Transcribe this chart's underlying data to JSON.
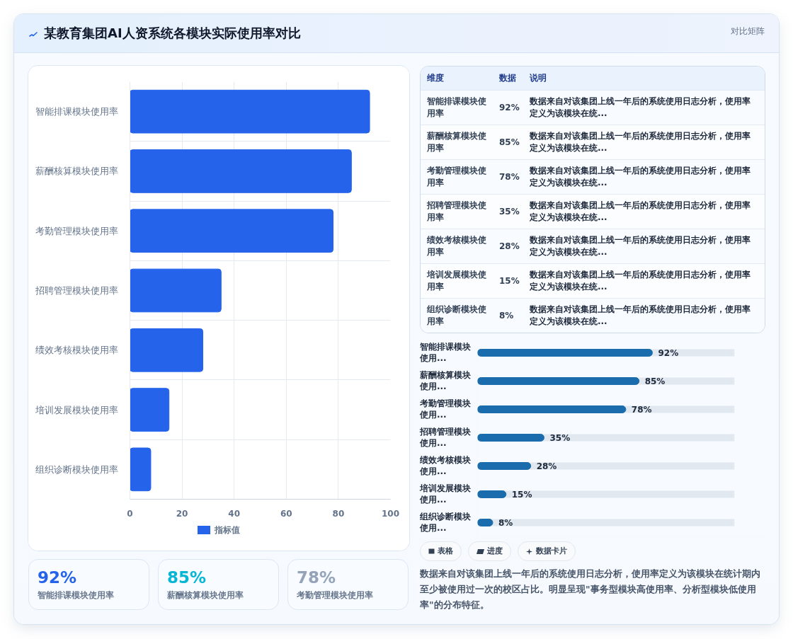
{
  "chart_data": [
    {
      "type": "bar",
      "title": "某教育集团AI人资系统各模块实际使用率对比",
      "orientation": "horizontal",
      "categories": [
        "智能排课模块使用率",
        "薪酬核算模块使用率",
        "考勤管理模块使用率",
        "招聘管理模块使用率",
        "绩效考核模块使用率",
        "培训发展模块使用率",
        "组织诊断模块使用率"
      ],
      "series": [
        {
          "name": "指标值",
          "color": "#2563eb",
          "values": [
            92,
            85,
            78,
            35,
            28,
            15,
            8
          ]
        }
      ],
      "xlim": [
        0,
        100
      ],
      "xticks": [
        0,
        20,
        40,
        60,
        80,
        100
      ],
      "grid": true,
      "legend": "bottom"
    },
    {
      "type": "other",
      "title": "对比矩阵",
      "categories": [
        "智能排课模块使用率",
        "薪酬核算模块使用率",
        "考勤管理模块使用率",
        "招聘管理模块使用率",
        "绩效考核模块使用率",
        "培训发展模块使用率",
        "组织诊断模块使用率"
      ],
      "value_labels": [
        "92%",
        "85%",
        "78%",
        "35%",
        "28%",
        "15%",
        "8%"
      ],
      "annotations": [
        "维度",
        "数据",
        "说明",
        "数据来自对该集团上线一年后的系统使用日志分析，使用率定义为该模块在统...",
        "数据来自对该集团上线一年后的系统使用日志分析，使用率定义为该模块在统...",
        "数据来自对该集团上线一年后的系统使用日志分析，使用率定义为该模块在统...",
        "数据来自对该集团上线一年后的系统使用日志分析，使用率定义为该模块在统...",
        "数据来自对该集团上线一年后的系统使用日志分析，使用率定义为该模块在统...",
        "数据来自对该集团上线一年后的系统使用日志分析，使用率定义为该模块在统...",
        "数据来自对该集团上线一年后的系统使用日志分析，使用率定义为该模块在统..."
      ]
    },
    {
      "type": "bar",
      "orientation": "horizontal",
      "categories": [
        "智能排课模块使用...",
        "薪酬核算模块使用...",
        "考勤管理模块使用...",
        "招聘管理模块使用...",
        "绩效考核模块使用...",
        "培训发展模块使用...",
        "组织诊断模块使用..."
      ],
      "values": [
        92,
        85,
        78,
        35,
        28,
        15,
        8
      ],
      "value_labels": [
        "92%",
        "85%",
        "78%",
        "35%",
        "28%",
        "15%",
        "8%"
      ],
      "color": "#1a6cac"
    },
    {
      "type": "other",
      "categories": [
        "智能排课模块使用率",
        "薪酬核算模块使用率",
        "考勤管理模块使用率"
      ],
      "value_labels": [
        "92%",
        "85%",
        "78%"
      ],
      "colors": [
        "#2563eb",
        "#06b6d4",
        "#94a3b8"
      ]
    },
    {
      "type": "other",
      "categories": [
        "表格",
        "进度",
        "数据卡片"
      ],
      "annotations": [
        "数据来自对该集团上线一年后的系统使用日志分析，使用率定义为该模块在统计期内至少被使用过一次的校区占比。明显呈现\"事务型模块高使用率、分析型模块低使用率\"的分布特征。"
      ]
    }
  ]
}
